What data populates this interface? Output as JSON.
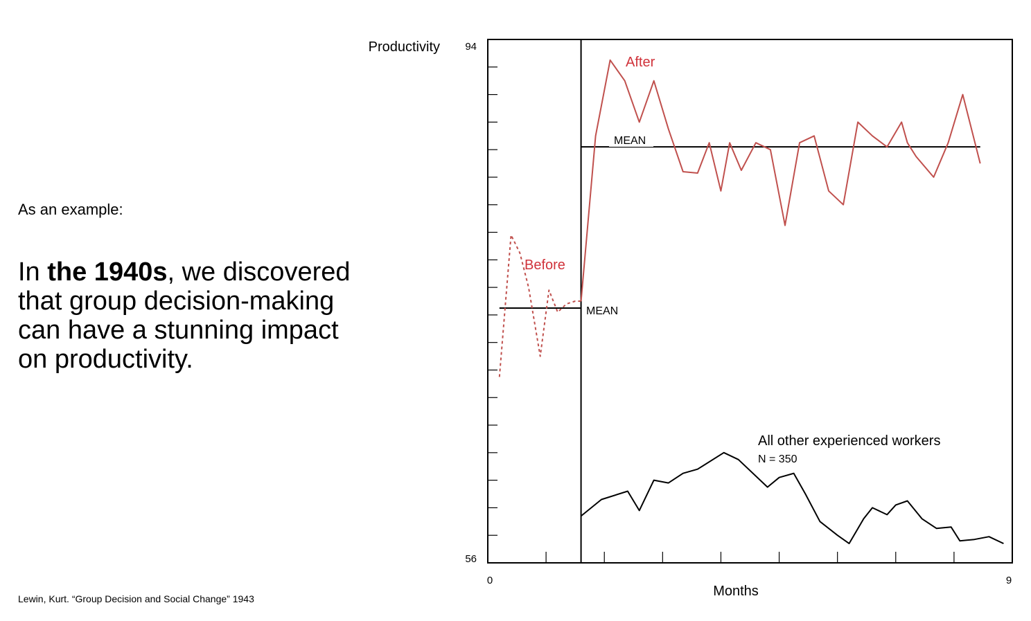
{
  "slide": {
    "intro": "As an example:",
    "headline_pre": "In ",
    "headline_bold": "the 1940s",
    "headline_post": ", we discovered that group decision-making can have a stunning impact on productivity.",
    "citation": "Lewin, Kurt. “Group Decision and Social Change” 1943"
  },
  "chart_data": {
    "type": "line",
    "title": "",
    "xlabel": "Months",
    "ylabel": "Productivity",
    "xlim": [
      0,
      9
    ],
    "ylim": [
      56,
      94
    ],
    "x_tick_labels": [
      "0",
      "9"
    ],
    "y_tick_labels": [
      "94",
      "56"
    ],
    "divider_x": 1.6,
    "series": [
      {
        "name": "Before",
        "style": "dotted",
        "color": "#c0504d",
        "x": [
          0.2,
          0.4,
          0.55,
          0.7,
          0.9,
          1.05,
          1.2,
          1.35,
          1.5,
          1.6
        ],
        "y": [
          69.5,
          79.8,
          78.5,
          76.0,
          71.0,
          75.8,
          74.2,
          74.8,
          75.0,
          75.0
        ]
      },
      {
        "name": "After",
        "style": "solid",
        "color": "#c0504d",
        "x": [
          1.6,
          1.85,
          2.1,
          2.35,
          2.6,
          2.85,
          3.1,
          3.35,
          3.6,
          3.8,
          4.0,
          4.15,
          4.35,
          4.6,
          4.85,
          5.1,
          5.35,
          5.6,
          5.85,
          6.1,
          6.35,
          6.6,
          6.85,
          7.1,
          7.2,
          7.35,
          7.65,
          7.9,
          8.15,
          8.45
        ],
        "y": [
          75.0,
          87.0,
          92.5,
          91.0,
          88.0,
          91.0,
          87.5,
          84.4,
          84.3,
          86.5,
          83.0,
          86.5,
          84.5,
          86.5,
          86.0,
          80.5,
          86.5,
          87.0,
          83.0,
          82.0,
          88.0,
          87.0,
          86.2,
          88.0,
          86.5,
          85.5,
          84.0,
          86.5,
          90.0,
          85.0
        ]
      },
      {
        "name": "All other experienced workers",
        "style": "solid",
        "color": "#000000",
        "x": [
          1.6,
          1.95,
          2.4,
          2.6,
          2.85,
          3.1,
          3.35,
          3.6,
          4.05,
          4.3,
          4.8,
          5.0,
          5.25,
          5.45,
          5.7,
          6.0,
          6.2,
          6.45,
          6.6,
          6.85,
          7.0,
          7.2,
          7.45,
          7.7,
          7.95,
          8.1,
          8.35,
          8.6,
          8.85
        ],
        "y": [
          59.4,
          60.6,
          61.2,
          59.8,
          62.0,
          61.8,
          62.5,
          62.8,
          64.0,
          63.5,
          61.5,
          62.2,
          62.5,
          61.0,
          59.0,
          58.0,
          57.4,
          59.2,
          60.0,
          59.5,
          60.2,
          60.5,
          59.2,
          58.5,
          58.6,
          57.6,
          57.7,
          57.9,
          57.4
        ]
      }
    ],
    "mean_lines": [
      {
        "label": "MEAN",
        "x_range": [
          0.2,
          1.6
        ],
        "y": 74.5
      },
      {
        "label": "MEAN",
        "x_range": [
          1.6,
          8.45
        ],
        "y": 86.2
      }
    ],
    "annotations": [
      {
        "text": "Before",
        "series": "Before"
      },
      {
        "text": "After",
        "series": "After"
      },
      {
        "text": "All other experienced workers",
        "series": "All other experienced workers"
      },
      {
        "text": "N = 350",
        "series": "All other experienced workers"
      }
    ]
  }
}
